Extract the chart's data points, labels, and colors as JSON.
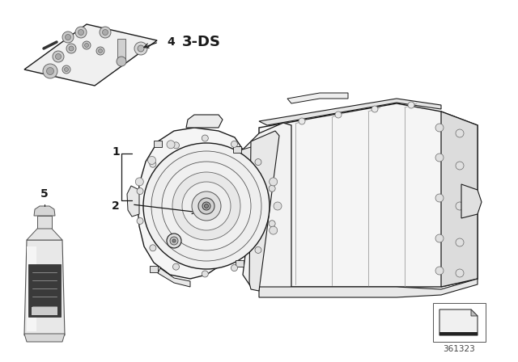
{
  "background_color": "#ffffff",
  "label_4_tag": "3-DS",
  "part_number": "361323",
  "line_color": "#1a1a1a",
  "light_gray": "#e8e8e8",
  "mid_gray": "#cccccc",
  "dark_gray": "#888888",
  "bottle_body": "#e0e0e0",
  "bottle_label_bg": "#444444",
  "bottle_label_light": "#666666"
}
